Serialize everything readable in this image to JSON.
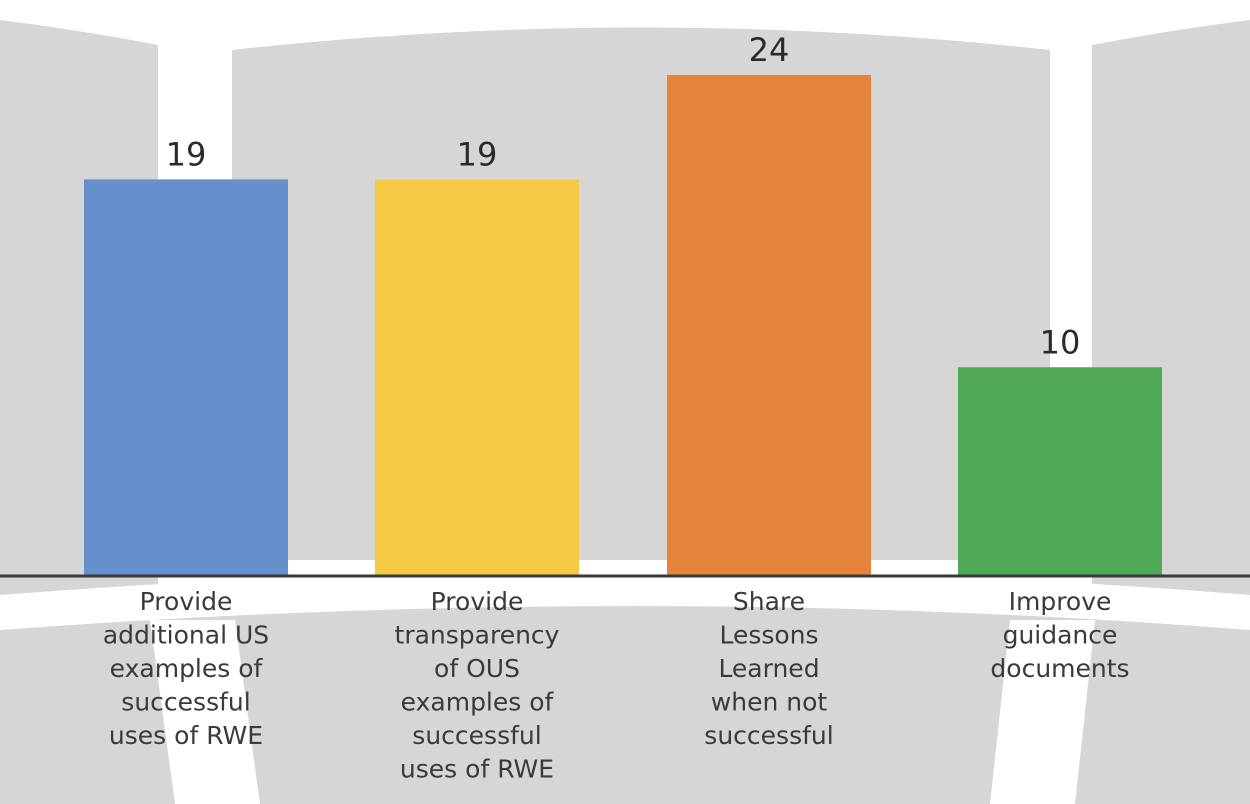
{
  "chart_data": {
    "type": "bar",
    "categories": [
      "Provide additional US examples of successful uses of RWE",
      "Provide transparency of OUS examples of successful uses of RWE",
      "Share Lessons Learned when not successful",
      "Improve guidance documents"
    ],
    "category_lines": [
      [
        "Provide",
        "additional US",
        "examples of",
        "successful",
        "uses of RWE"
      ],
      [
        "Provide",
        "transparency",
        "of OUS",
        "examples of",
        "successful",
        "uses of RWE"
      ],
      [
        "Share",
        "Lessons",
        "Learned",
        "when not",
        "successful"
      ],
      [
        "Improve",
        "guidance",
        "documents"
      ]
    ],
    "values": [
      19,
      19,
      24,
      10
    ],
    "value_labels": [
      "19",
      "19",
      "24",
      "10"
    ],
    "colors": [
      "#6690cb",
      "#f5c944",
      "#e5843a",
      "#4fa855"
    ],
    "background_color": "#d6d6d6",
    "axis_color": "#3a3a3a",
    "ylim": [
      0,
      24
    ],
    "grid": false,
    "legend": "none",
    "title": "",
    "xlabel": "",
    "ylabel": ""
  }
}
